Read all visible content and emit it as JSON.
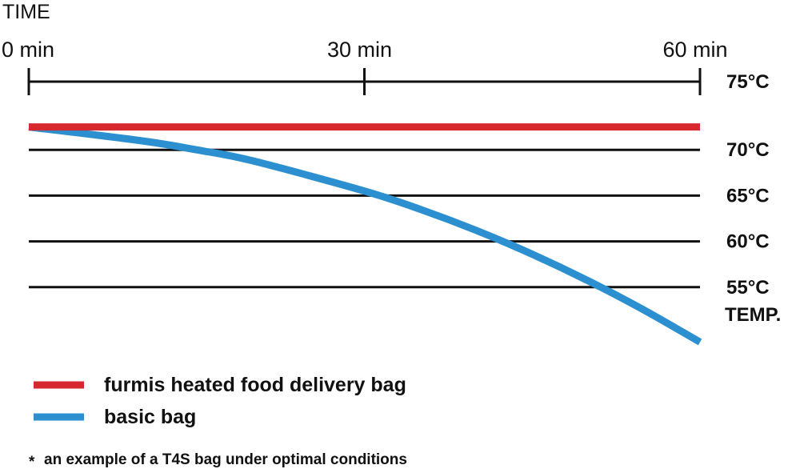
{
  "chart_data": {
    "type": "line",
    "x_axis_title": "TIME",
    "x_unit": "min",
    "x_ticks": [
      {
        "value": 0,
        "label": "0 min"
      },
      {
        "value": 30,
        "label": "30 min"
      },
      {
        "value": 60,
        "label": "60 min"
      }
    ],
    "xlim": [
      0,
      60
    ],
    "y_axis_title": "TEMP.",
    "y_unit": "°C",
    "y_ticks": [
      {
        "value": 75,
        "label": "75°C"
      },
      {
        "value": 70,
        "label": "70°C"
      },
      {
        "value": 65,
        "label": "65°C"
      },
      {
        "value": 60,
        "label": "60°C"
      },
      {
        "value": 55,
        "label": "55°C"
      }
    ],
    "ylim": [
      50,
      75
    ],
    "series": [
      {
        "name": "furmis heated food delivery bag",
        "color": "#d7282f",
        "x": [
          0,
          10,
          20,
          30,
          40,
          50,
          60
        ],
        "y": [
          72.5,
          72.5,
          72.5,
          72.5,
          72.5,
          72.5,
          72.5
        ]
      },
      {
        "name": "basic bag",
        "color": "#2b8fd0",
        "x": [
          0,
          10,
          15,
          20,
          30,
          35,
          40,
          45,
          50,
          55,
          60
        ],
        "y": [
          72.5,
          71.0,
          70.0,
          68.8,
          65.5,
          63.5,
          61.2,
          58.6,
          55.7,
          52.5,
          49.0
        ]
      }
    ],
    "footnote": "an example of a T4S bag under optimal conditions",
    "footnote_marker": "*",
    "grid": true,
    "legend_position": "bottom-left"
  }
}
